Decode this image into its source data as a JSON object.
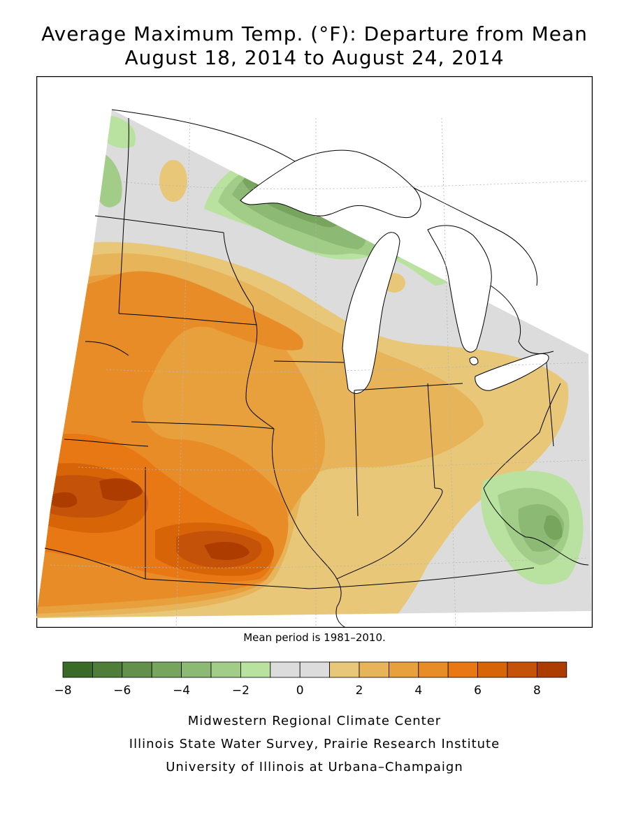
{
  "title_line1": "Average Maximum Temp. (°F): Departure from Mean",
  "title_line2": "August 18, 2014 to August 24, 2014",
  "mean_note": "Mean period is 1981–2010.",
  "legend": {
    "bins": [
      {
        "color": "#3a6a28"
      },
      {
        "color": "#4f7d3a"
      },
      {
        "color": "#63914c"
      },
      {
        "color": "#77a55e"
      },
      {
        "color": "#8cb973"
      },
      {
        "color": "#a2cd89"
      },
      {
        "color": "#b9e2a0"
      },
      {
        "color": "#dcdcdc"
      },
      {
        "color": "#dcdcdc"
      },
      {
        "color": "#e8c878"
      },
      {
        "color": "#e8b45a"
      },
      {
        "color": "#e8a03c"
      },
      {
        "color": "#e88c28"
      },
      {
        "color": "#e87814"
      },
      {
        "color": "#d86408"
      },
      {
        "color": "#c45208"
      },
      {
        "color": "#ac3c00"
      }
    ],
    "tick_labels": [
      "−8",
      "−6",
      "−4",
      "−2",
      "0",
      "2",
      "4",
      "6",
      "8"
    ]
  },
  "credits": [
    "Midwestern Regional Climate Center",
    "Illinois State Water Survey, Prairie Research Institute",
    "University of Illinois at Urbana–Champaign"
  ],
  "colors": {
    "lake_fill": "#ffffff",
    "boundary": "#000000",
    "grid": "#b4b4b4"
  }
}
